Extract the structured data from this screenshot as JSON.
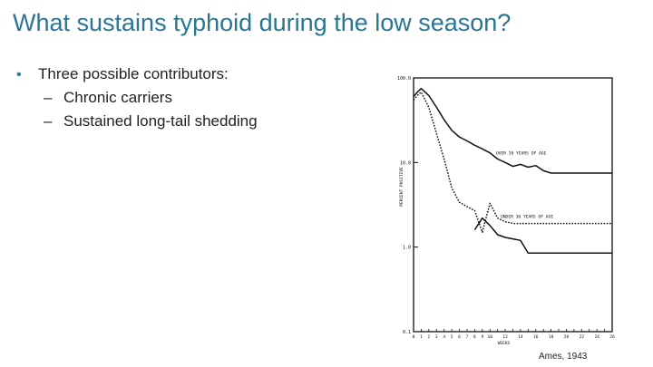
{
  "slide": {
    "title": "What sustains typhoid during the low season?",
    "bullet": "Three possible contributors:",
    "sub_bullets": [
      "Chronic carriers",
      "Sustained long-tail shedding"
    ],
    "credit": "Ames, 1943"
  },
  "chart_data": {
    "type": "line",
    "ylabel": "PERCENT POSITIVE",
    "xlabel": "WEEKS",
    "y_scale": "log",
    "ylim": [
      0.1,
      100
    ],
    "yticks": [
      "100.0",
      "10.0",
      "1.0",
      "0.1"
    ],
    "xlim": [
      0,
      26
    ],
    "xticks": [
      "0",
      "1",
      "2",
      "3",
      "4",
      "5",
      "6",
      "7",
      "8",
      "9",
      "10",
      "11",
      "12",
      "13",
      "14",
      "15",
      "16",
      "17",
      "18",
      "19",
      "20",
      "21",
      "22",
      "23",
      "24",
      "25",
      "26"
    ],
    "xtick_labels_printed": [
      "0",
      "1",
      "2",
      "3",
      "4",
      "5",
      "6",
      "7",
      "8",
      "9",
      "10",
      "12",
      "14",
      "16",
      "18",
      "20",
      "22",
      "24",
      "26"
    ],
    "series": [
      {
        "name": "OVER 30 YEARS OF AGE",
        "style": "solid",
        "x": [
          0,
          0.5,
          1,
          2,
          3,
          4,
          5,
          6,
          7,
          8,
          9,
          10,
          11,
          12,
          13,
          14,
          15,
          16,
          17,
          18,
          26
        ],
        "y": [
          60,
          68,
          75,
          62,
          45,
          32,
          24,
          20,
          18,
          16,
          14.5,
          13,
          11,
          10,
          9,
          9.5,
          8.8,
          9.2,
          8,
          7.5,
          7.5
        ]
      },
      {
        "name": "UNDER 30 YEARS OF AGE",
        "style": "dashed",
        "x": [
          0,
          0.5,
          1,
          2,
          3,
          4,
          5,
          6,
          7,
          8,
          9,
          10,
          11,
          12,
          13,
          26
        ],
        "y": [
          55,
          62,
          68,
          45,
          22,
          11,
          5,
          3.4,
          3,
          2.7,
          1.5,
          3.3,
          2.2,
          2.0,
          1.9,
          1.9
        ]
      },
      {
        "name": "",
        "style": "solid",
        "x": [
          8,
          9,
          10,
          11,
          12,
          13,
          14,
          15,
          26
        ],
        "y": [
          1.6,
          2.2,
          1.8,
          1.4,
          1.3,
          1.25,
          1.2,
          0.85,
          0.85
        ]
      }
    ]
  }
}
